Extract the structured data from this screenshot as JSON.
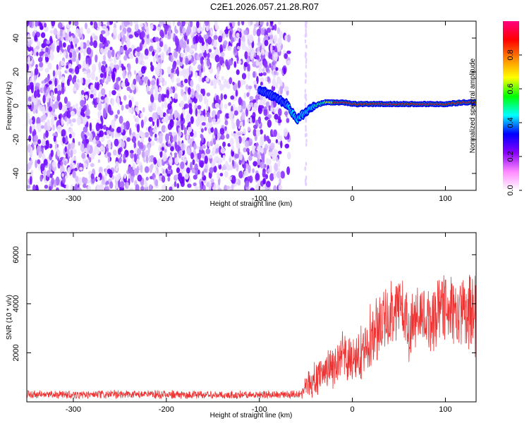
{
  "figure": {
    "title": "C2E1.2026.057.21.28.R07"
  },
  "chart_data": [
    {
      "type": "heatmap",
      "title": "",
      "xlabel": "Height of straight line (km)",
      "ylabel": "Frequency (Hz)",
      "xlim": [
        -350,
        133
      ],
      "ylim": [
        -50,
        50
      ],
      "x_ticks": [
        -300,
        -200,
        -100,
        0,
        100
      ],
      "y_ticks": [
        -40,
        -20,
        0,
        20,
        40
      ],
      "grid": false,
      "colorbar": {
        "label": "Normalized spectral amplitude",
        "range": [
          0,
          1
        ],
        "ticks": [
          0.0,
          0.2,
          0.4,
          0.6,
          0.8
        ],
        "colors": [
          "#ffffff",
          "#ff88ff",
          "#8800ff",
          "#0000ff",
          "#00ffff",
          "#00ff00",
          "#ffff00",
          "#ff8800",
          "#ff0000",
          "#ff0080"
        ]
      },
      "noise_region_x": [
        -350,
        -68
      ],
      "faint_line_x": -50,
      "signal_trace": {
        "x": [
          -100,
          -90,
          -80,
          -70,
          -65,
          -60,
          -55,
          -50,
          -45,
          -40,
          -35,
          -30,
          -25,
          -20,
          -10,
          0,
          20,
          50,
          80,
          100,
          120,
          133
        ],
        "y": [
          10,
          7,
          4,
          1,
          -4,
          -8,
          -6,
          -4,
          -2,
          0,
          1,
          2,
          2,
          2,
          2,
          1,
          1,
          1,
          1,
          1,
          2,
          2
        ]
      }
    },
    {
      "type": "line",
      "title": "",
      "xlabel": "Height of straight line (km)",
      "ylabel": "SNR (10 * v/v)",
      "xlim": [
        -350,
        133
      ],
      "ylim": [
        0,
        6900
      ],
      "x_ticks": [
        -300,
        -200,
        -100,
        0,
        100
      ],
      "y_ticks": [
        2000,
        4000,
        6000
      ],
      "grid": false,
      "series": [
        {
          "color": "#ee3333",
          "x": [
            -350,
            -300,
            -250,
            -200,
            -150,
            -100,
            -70,
            -55,
            -48,
            -40,
            -30,
            -20,
            -10,
            0,
            10,
            20,
            30,
            40,
            50,
            60,
            70,
            80,
            90,
            100,
            110,
            120,
            133
          ],
          "y": [
            300,
            280,
            300,
            290,
            280,
            290,
            300,
            350,
            700,
            900,
            1300,
            1500,
            1800,
            1600,
            2000,
            2700,
            3200,
            3500,
            4100,
            3100,
            3400,
            3300,
            3600,
            4200,
            3400,
            3700,
            3500
          ],
          "y_spread": [
            200,
            200,
            200,
            200,
            200,
            200,
            200,
            250,
            600,
            800,
            1000,
            1100,
            1200,
            1100,
            1300,
            1500,
            1500,
            1600,
            1700,
            1600,
            1500,
            1600,
            1700,
            1900,
            1600,
            1700,
            1800
          ]
        }
      ]
    }
  ]
}
